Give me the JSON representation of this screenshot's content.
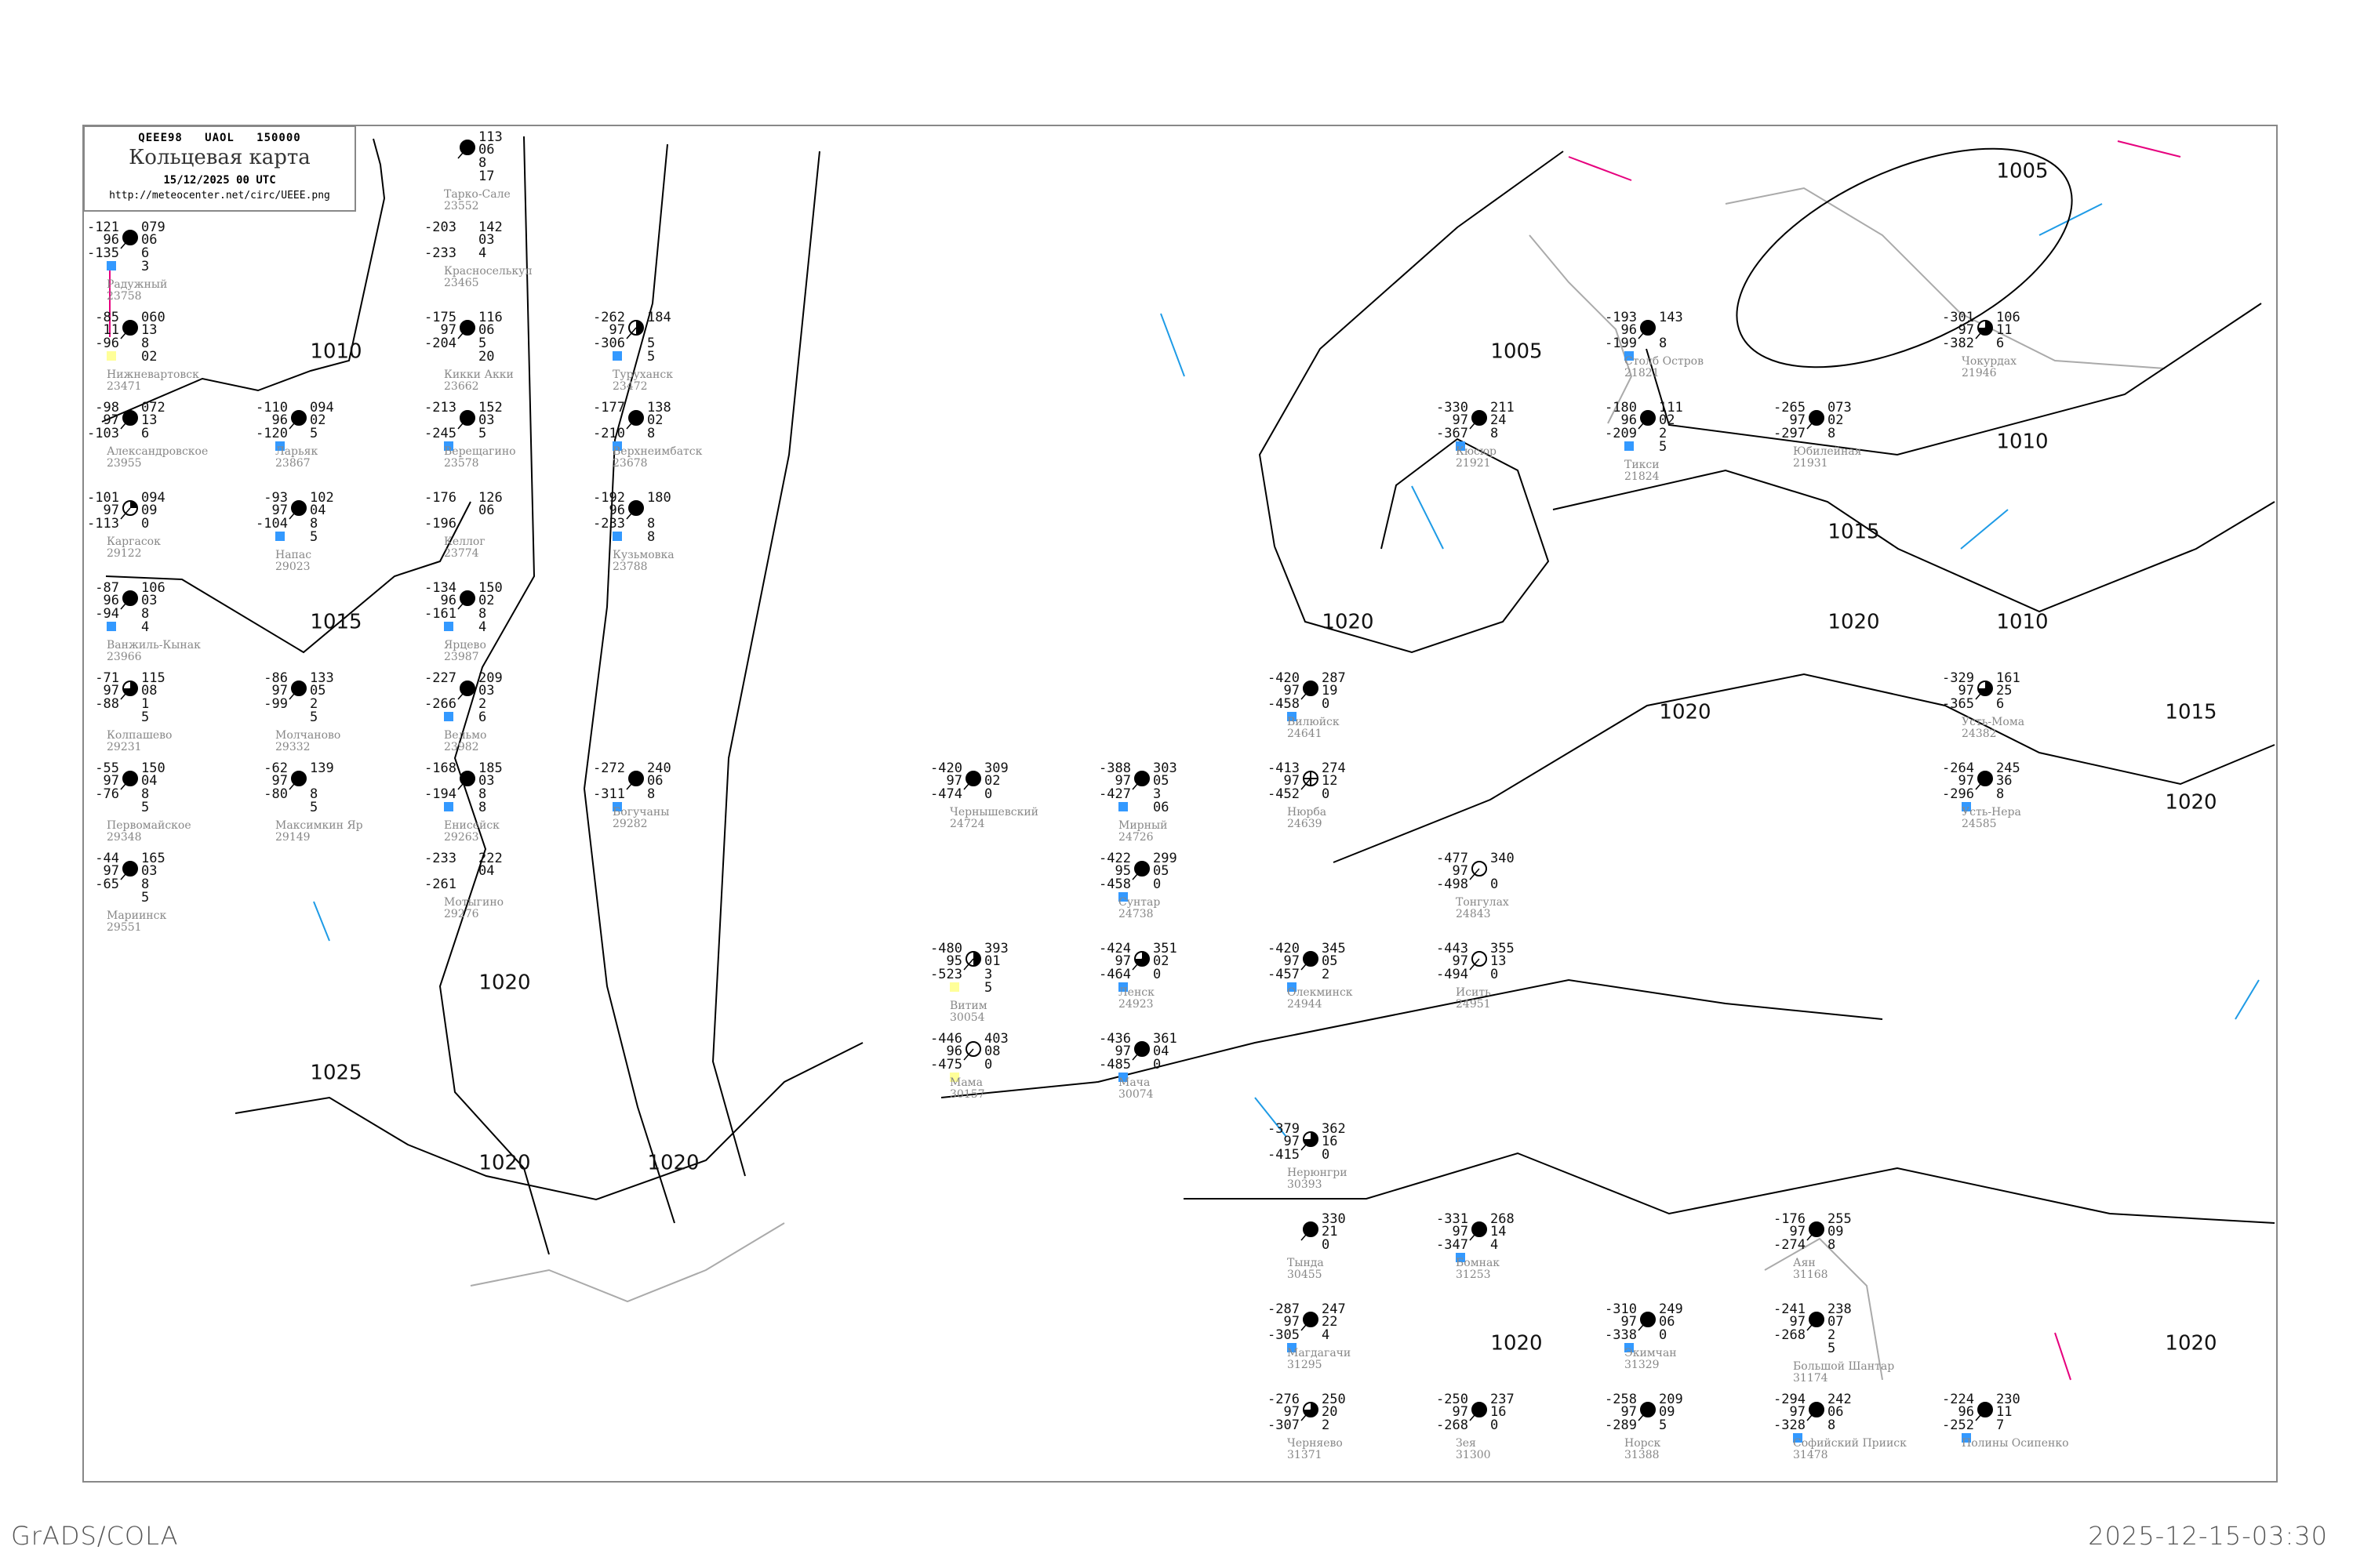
{
  "header": {
    "code": "QEEE98   UAOL   150000",
    "title": "Кольцевая карта",
    "datetime": "15/12/2025 00 UTC",
    "url": "http://meteocenter.net/circ/UEEE.png"
  },
  "footer": {
    "left": "GrADS/COLA",
    "right": "2025-12-15-03:30"
  },
  "colors": {
    "isobar": "#000000",
    "coast": "#aaaaaa",
    "isotherm_neg": "#1e9be6",
    "isotherm_pos": "#e6007e",
    "snow_box": "#3399ff",
    "fog_box": "#ffff99",
    "frame": "#888888"
  },
  "isobar_labels": [
    "1010",
    "1015",
    "1020",
    "1025",
    "1020",
    "1020",
    "1020",
    "1015",
    "1020",
    "1010",
    "1020",
    "1015",
    "1020",
    "1005",
    "1010",
    "1020",
    "1020",
    "1005"
  ],
  "stations": [
    {
      "name": "Радужный",
      "id": "23758",
      "t": "-121",
      "m": "96",
      "td": "-135",
      "p": "079",
      "dp": "06",
      "extra": [
        "6",
        "3"
      ],
      "cover": "full",
      "box": "snow"
    },
    {
      "name": "Нижневартовск",
      "id": "23471",
      "t": "-85",
      "m": "11",
      "td": "-96",
      "p": "060",
      "dp": "13",
      "extra": [
        "8",
        "02"
      ],
      "cover": "full",
      "box": "fog"
    },
    {
      "name": "Александровское",
      "id": "23955",
      "t": "-98",
      "m": "97",
      "td": "-103",
      "p": "072",
      "dp": "13",
      "extra": [
        "6"
      ],
      "cover": "full",
      "box": ""
    },
    {
      "name": "Ларьяк",
      "id": "23867",
      "t": "-110",
      "m": "96",
      "td": "-120",
      "p": "094",
      "dp": "02",
      "extra": [
        "5"
      ],
      "cover": "full",
      "box": "snow"
    },
    {
      "name": "Каргасок",
      "id": "29122",
      "t": "-101",
      "m": "97",
      "td": "-113",
      "p": "094",
      "dp": "09",
      "extra": [
        "0"
      ],
      "cover": "quarter",
      "box": ""
    },
    {
      "name": "Напас",
      "id": "29023",
      "t": "-93",
      "m": "97",
      "td": "-104",
      "p": "102",
      "dp": "04",
      "extra": [
        "8",
        "5"
      ],
      "cover": "full",
      "box": "snow"
    },
    {
      "name": "Ванжиль-Кынак",
      "id": "23966",
      "t": "-87",
      "m": "96",
      "td": "-94",
      "p": "106",
      "dp": "03",
      "extra": [
        "8",
        "4"
      ],
      "cover": "full",
      "box": "snow"
    },
    {
      "name": "Тарко-Сале",
      "id": "23552",
      "t": "",
      "m": "",
      "td": "",
      "p": "113",
      "dp": "06",
      "extra": [
        "8",
        "17"
      ],
      "cover": "full",
      "box": ""
    },
    {
      "name": "Красноселькуп",
      "id": "23465",
      "t": "-203",
      "m": "",
      "td": "-233",
      "p": "142",
      "dp": "03",
      "extra": [
        "4"
      ],
      "cover": "none",
      "box": ""
    },
    {
      "name": "Кикки Акки",
      "id": "23662",
      "t": "-175",
      "m": "97",
      "td": "-204",
      "p": "116",
      "dp": "06",
      "extra": [
        "5",
        "20"
      ],
      "cover": "full",
      "box": ""
    },
    {
      "name": "Туруханск",
      "id": "23472",
      "t": "-262",
      "m": "97",
      "td": "-306",
      "p": "184",
      "dp": "",
      "extra": [
        "5",
        "5"
      ],
      "cover": "half",
      "box": "snow"
    },
    {
      "name": "Верещагино",
      "id": "23578",
      "t": "-213",
      "m": "",
      "td": "-245",
      "p": "152",
      "dp": "03",
      "extra": [
        "5"
      ],
      "cover": "full",
      "box": "snow"
    },
    {
      "name": "Келлог",
      "id": "23774",
      "t": "-176",
      "m": "",
      "td": "-196",
      "p": "126",
      "dp": "06",
      "extra": [],
      "cover": "none",
      "box": ""
    },
    {
      "name": "Верхнеимбатск",
      "id": "23678",
      "t": "-177",
      "m": "",
      "td": "-210",
      "p": "138",
      "dp": "02",
      "extra": [
        "8"
      ],
      "cover": "full",
      "box": "snow"
    },
    {
      "name": "Колпашево",
      "id": "29231",
      "t": "-71",
      "m": "97",
      "td": "-88",
      "p": "115",
      "dp": "08",
      "extra": [
        "1",
        "5"
      ],
      "cover": "threequarter",
      "box": ""
    },
    {
      "name": "Молчаново",
      "id": "29332",
      "t": "-86",
      "m": "97",
      "td": "-99",
      "p": "133",
      "dp": "05",
      "extra": [
        "2",
        "5"
      ],
      "cover": "full",
      "box": ""
    },
    {
      "name": "Максимкин Яр",
      "id": "29149",
      "t": "-62",
      "m": "97",
      "td": "-80",
      "p": "139",
      "dp": "",
      "extra": [
        "8",
        "5"
      ],
      "cover": "full",
      "box": ""
    },
    {
      "name": "Ярцево",
      "id": "23987",
      "t": "-134",
      "m": "96",
      "td": "-161",
      "p": "150",
      "dp": "02",
      "extra": [
        "8",
        "4"
      ],
      "cover": "full",
      "box": "snow"
    },
    {
      "name": "Кузьмовка",
      "id": "23788",
      "t": "-192",
      "m": "96",
      "td": "-233",
      "p": "180",
      "dp": "",
      "extra": [
        "8",
        "8"
      ],
      "cover": "full",
      "box": "snow"
    },
    {
      "name": "Вельмо",
      "id": "23982",
      "t": "-227",
      "m": "",
      "td": "-266",
      "p": "209",
      "dp": "03",
      "extra": [
        "2",
        "6"
      ],
      "cover": "full",
      "box": "snow"
    },
    {
      "name": "Первомайское",
      "id": "29348",
      "t": "-55",
      "m": "97",
      "td": "-76",
      "p": "150",
      "dp": "04",
      "extra": [
        "8",
        "5"
      ],
      "cover": "full",
      "box": ""
    },
    {
      "name": "Енисейск",
      "id": "29263",
      "t": "-168",
      "m": "",
      "td": "-194",
      "p": "185",
      "dp": "03",
      "extra": [
        "8",
        "8"
      ],
      "cover": "full",
      "box": "snow"
    },
    {
      "name": "Мариинск",
      "id": "29551",
      "t": "-44",
      "m": "97",
      "td": "-65",
      "p": "165",
      "dp": "03",
      "extra": [
        "8",
        "5"
      ],
      "cover": "full",
      "box": ""
    },
    {
      "name": "Мотыгино",
      "id": "29276",
      "t": "-233",
      "m": "",
      "td": "-261",
      "p": "222",
      "dp": "04",
      "extra": [],
      "cover": "none",
      "box": ""
    },
    {
      "name": "Богучаны",
      "id": "29282",
      "t": "-272",
      "m": "",
      "td": "-311",
      "p": "240",
      "dp": "06",
      "extra": [
        "8"
      ],
      "cover": "full",
      "box": "snow"
    },
    {
      "name": "Чернышевский",
      "id": "24724",
      "t": "-420",
      "m": "97",
      "td": "-474",
      "p": "309",
      "dp": "02",
      "extra": [
        "0"
      ],
      "cover": "full",
      "box": ""
    },
    {
      "name": "Мирный",
      "id": "24726",
      "t": "-388",
      "m": "97",
      "td": "-427",
      "p": "303",
      "dp": "05",
      "extra": [
        "3",
        "06"
      ],
      "cover": "full",
      "box": "snow"
    },
    {
      "name": "Нюрба",
      "id": "24639",
      "t": "-413",
      "m": "97",
      "td": "-452",
      "p": "274",
      "dp": "12",
      "extra": [
        "0"
      ],
      "cover": "obscured",
      "box": ""
    },
    {
      "name": "Вилюйск",
      "id": "24641",
      "t": "-420",
      "m": "97",
      "td": "-458",
      "p": "287",
      "dp": "19",
      "extra": [
        "0"
      ],
      "cover": "full",
      "box": "snow"
    },
    {
      "name": "Сунтар",
      "id": "24738",
      "t": "-422",
      "m": "95",
      "td": "-458",
      "p": "299",
      "dp": "05",
      "extra": [
        "0"
      ],
      "cover": "full",
      "box": "snow"
    },
    {
      "name": "Ленск",
      "id": "24923",
      "t": "-424",
      "m": "97",
      "td": "-464",
      "p": "351",
      "dp": "02",
      "extra": [
        "0"
      ],
      "cover": "threequarter",
      "box": "snow"
    },
    {
      "name": "Витим",
      "id": "30054",
      "t": "-480",
      "m": "95",
      "td": "-523",
      "p": "393",
      "dp": "01",
      "extra": [
        "3",
        "5"
      ],
      "cover": "half",
      "box": "fog"
    },
    {
      "name": "Мама",
      "id": "30157",
      "t": "-446",
      "m": "96",
      "td": "-475",
      "p": "403",
      "dp": "08",
      "extra": [
        "0"
      ],
      "cover": "empty",
      "box": "fog"
    },
    {
      "name": "Мача",
      "id": "30074",
      "t": "-436",
      "m": "97",
      "td": "-485",
      "p": "361",
      "dp": "04",
      "extra": [
        "0"
      ],
      "cover": "full",
      "box": "snow"
    },
    {
      "name": "Олекминск",
      "id": "24944",
      "t": "-420",
      "m": "97",
      "td": "-457",
      "p": "345",
      "dp": "05",
      "extra": [
        "2"
      ],
      "cover": "full",
      "box": "snow"
    },
    {
      "name": "Тонгулах",
      "id": "24843",
      "t": "-477",
      "m": "97",
      "td": "-498",
      "p": "340",
      "dp": "",
      "extra": [
        "0"
      ],
      "cover": "empty",
      "box": ""
    },
    {
      "name": "Исить",
      "id": "24951",
      "t": "-443",
      "m": "97",
      "td": "-494",
      "p": "355",
      "dp": "13",
      "extra": [
        "0"
      ],
      "cover": "empty",
      "box": ""
    },
    {
      "name": "Столб Остров",
      "id": "21821",
      "t": "-193",
      "m": "96",
      "td": "-199",
      "p": "143",
      "dp": "",
      "extra": [
        "8"
      ],
      "cover": "full",
      "box": "snow"
    },
    {
      "name": "Тикси",
      "id": "21824",
      "t": "-180",
      "m": "96",
      "td": "-209",
      "p": "111",
      "dp": "02",
      "extra": [
        "2",
        "5"
      ],
      "cover": "full",
      "box": "snow"
    },
    {
      "name": "Кюсюр",
      "id": "21921",
      "t": "-330",
      "m": "97",
      "td": "-367",
      "p": "211",
      "dp": "24",
      "extra": [
        "8"
      ],
      "cover": "full",
      "box": "snow"
    },
    {
      "name": "Юбилейная",
      "id": "21931",
      "t": "-265",
      "m": "97",
      "td": "-297",
      "p": "073",
      "dp": "02",
      "extra": [
        "8"
      ],
      "cover": "full",
      "box": ""
    },
    {
      "name": "Чокурдах",
      "id": "21946",
      "t": "-301",
      "m": "97",
      "td": "-382",
      "p": "106",
      "dp": "11",
      "extra": [
        "6"
      ],
      "cover": "threequarter",
      "box": ""
    },
    {
      "name": "Усть-Мома",
      "id": "24382",
      "t": "-329",
      "m": "97",
      "td": "-365",
      "p": "161",
      "dp": "25",
      "extra": [
        "6"
      ],
      "cover": "threequarter",
      "box": ""
    },
    {
      "name": "Усть-Нера",
      "id": "24585",
      "t": "-264",
      "m": "97",
      "td": "-296",
      "p": "245",
      "dp": "36",
      "extra": [
        "8"
      ],
      "cover": "full",
      "box": "snow"
    },
    {
      "name": "Нерюнгри",
      "id": "30393",
      "t": "-379",
      "m": "97",
      "td": "-415",
      "p": "362",
      "dp": "16",
      "extra": [
        "0"
      ],
      "cover": "threequarter",
      "box": ""
    },
    {
      "name": "Тында",
      "id": "30455",
      "t": "",
      "m": "",
      "td": "",
      "p": "330",
      "dp": "21",
      "extra": [
        "0"
      ],
      "cover": "full",
      "box": ""
    },
    {
      "name": "Бомнак",
      "id": "31253",
      "t": "-331",
      "m": "97",
      "td": "-347",
      "p": "268",
      "dp": "14",
      "extra": [
        "4"
      ],
      "cover": "full",
      "box": "snow"
    },
    {
      "name": "Магдагачи",
      "id": "31295",
      "t": "-287",
      "m": "97",
      "td": "-305",
      "p": "247",
      "dp": "22",
      "extra": [
        "4"
      ],
      "cover": "full",
      "box": "snow"
    },
    {
      "name": "Зея",
      "id": "31300",
      "t": "-250",
      "m": "97",
      "td": "-268",
      "p": "237",
      "dp": "16",
      "extra": [
        "0"
      ],
      "cover": "full",
      "box": ""
    },
    {
      "name": "Черняево",
      "id": "31371",
      "t": "-276",
      "m": "97",
      "td": "-307",
      "p": "250",
      "dp": "20",
      "extra": [
        "2"
      ],
      "cover": "threequarter",
      "box": ""
    },
    {
      "name": "Норск",
      "id": "31388",
      "t": "-258",
      "m": "97",
      "td": "-289",
      "p": "209",
      "dp": "09",
      "extra": [
        "5"
      ],
      "cover": "full",
      "box": ""
    },
    {
      "name": "Экимчан",
      "id": "31329",
      "t": "-310",
      "m": "97",
      "td": "-338",
      "p": "249",
      "dp": "06",
      "extra": [
        "0"
      ],
      "cover": "full",
      "box": "snow"
    },
    {
      "name": "Софийский Прииск",
      "id": "31478",
      "t": "-294",
      "m": "97",
      "td": "-328",
      "p": "242",
      "dp": "06",
      "extra": [
        "8"
      ],
      "cover": "full",
      "box": "snow"
    },
    {
      "name": "Аян",
      "id": "31168",
      "t": "-176",
      "m": "97",
      "td": "-274",
      "p": "255",
      "dp": "09",
      "extra": [
        "8"
      ],
      "cover": "full",
      "box": ""
    },
    {
      "name": "Большой Шантар",
      "id": "31174",
      "t": "-241",
      "m": "97",
      "td": "-268",
      "p": "238",
      "dp": "07",
      "extra": [
        "2",
        "5"
      ],
      "cover": "full",
      "box": ""
    },
    {
      "name": "Полины Осипенко",
      "id": "",
      "t": "-224",
      "m": "96",
      "td": "-252",
      "p": "230",
      "dp": "11",
      "extra": [
        "7"
      ],
      "cover": "full",
      "box": "snow"
    }
  ]
}
